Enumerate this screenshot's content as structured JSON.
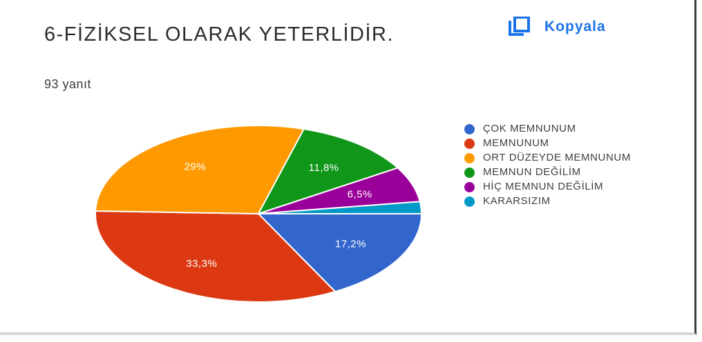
{
  "header": {
    "title": "6-FİZİKSEL OLARAK YETERLİDİR.",
    "responses": "93 yanıt",
    "copy_label": "Kopyala",
    "copy_icon": "copy-icon"
  },
  "colors": {
    "accent": "#1a73e8",
    "slices": [
      "#3366cc",
      "#dc3912",
      "#ff9900",
      "#109618",
      "#990099",
      "#0099c6"
    ]
  },
  "chart_data": {
    "type": "pie",
    "title": "6-FİZİKSEL OLARAK YETERLİDİR.",
    "labels": [
      "ÇOK MEMNUNUM",
      "MEMNUNUM",
      "ORT DÜZEYDE MEMNUNUM",
      "MEMNUN DEĞİLİM",
      "HİÇ MEMNUN DEĞİLİM",
      "KARARSIZIM"
    ],
    "values": [
      17.2,
      33.3,
      29,
      11.8,
      6.5,
      2.2
    ],
    "value_labels": [
      "17,2%",
      "33,3%",
      "29%",
      "11,8%",
      "6,5%",
      ""
    ],
    "legend_position": "right"
  }
}
